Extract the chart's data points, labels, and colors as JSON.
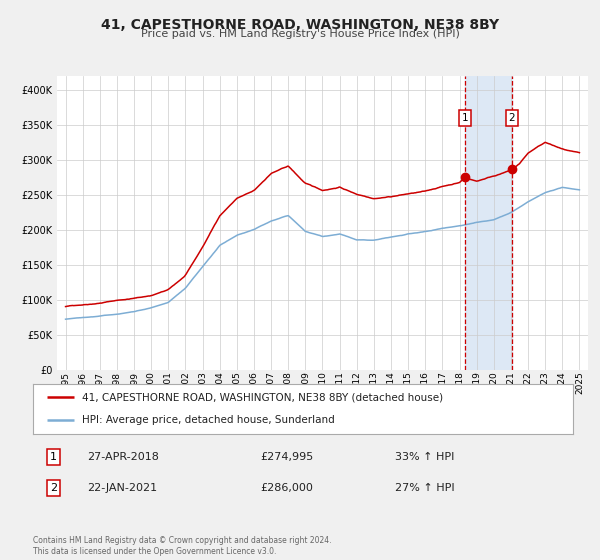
{
  "title": "41, CAPESTHORNE ROAD, WASHINGTON, NE38 8BY",
  "subtitle": "Price paid vs. HM Land Registry's House Price Index (HPI)",
  "legend_line1": "41, CAPESTHORNE ROAD, WASHINGTON, NE38 8BY (detached house)",
  "legend_line2": "HPI: Average price, detached house, Sunderland",
  "annotation1_date": "27-APR-2018",
  "annotation1_price": "£274,995",
  "annotation1_hpi": "33% ↑ HPI",
  "annotation2_date": "22-JAN-2021",
  "annotation2_price": "£286,000",
  "annotation2_hpi": "27% ↑ HPI",
  "footer": "Contains HM Land Registry data © Crown copyright and database right 2024.\nThis data is licensed under the Open Government Licence v3.0.",
  "red_color": "#cc0000",
  "blue_color": "#7dadd4",
  "shade_color": "#dde8f5",
  "marker1_x": 2018.32,
  "marker1_y": 274995,
  "marker2_x": 2021.05,
  "marker2_y": 286000,
  "vline1_x": 2018.32,
  "vline2_x": 2021.05,
  "shade_xmin": 2018.32,
  "shade_xmax": 2021.05,
  "ylim": [
    0,
    420000
  ],
  "xlim": [
    1994.5,
    2025.5
  ],
  "yticks": [
    0,
    50000,
    100000,
    150000,
    200000,
    250000,
    300000,
    350000,
    400000
  ],
  "xticks": [
    1995,
    1996,
    1997,
    1998,
    1999,
    2000,
    2001,
    2002,
    2003,
    2004,
    2005,
    2006,
    2007,
    2008,
    2009,
    2010,
    2011,
    2012,
    2013,
    2014,
    2015,
    2016,
    2017,
    2018,
    2019,
    2020,
    2021,
    2022,
    2023,
    2024,
    2025
  ],
  "background_color": "#f0f0f0",
  "plot_bg_color": "#ffffff",
  "grid_color": "#cccccc",
  "title_fontsize": 10,
  "subtitle_fontsize": 8,
  "tick_fontsize": 7,
  "legend_fontsize": 7.5,
  "ann_fontsize": 8,
  "footer_fontsize": 5.5
}
